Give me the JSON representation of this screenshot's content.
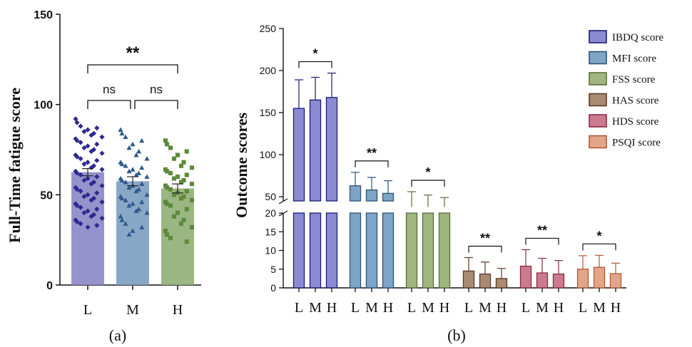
{
  "chart_data": [
    {
      "type": "bar",
      "panel_label": "(a)",
      "ylabel": "Full-Time fatigue score",
      "ylim": [
        0,
        150
      ],
      "yticks": [
        "0",
        "50",
        "100",
        "150"
      ],
      "categories": [
        "L",
        "M",
        "H"
      ],
      "values": [
        62.5,
        57.5,
        53.5
      ],
      "errors": [
        2,
        2.5,
        2.5
      ],
      "colors": [
        "#8b87c6",
        "#7c9ec0",
        "#8fae76"
      ],
      "point_colors": [
        "#2d2a8f",
        "#2f5a8c",
        "#5d8a3a"
      ],
      "point_markers": [
        "diamond",
        "triangle",
        "square"
      ],
      "points": [
        [
          92,
          90,
          88,
          87,
          86,
          85,
          84,
          83,
          82,
          81,
          80,
          79,
          78,
          77,
          76,
          75,
          74,
          73,
          72,
          71,
          70,
          69,
          68,
          67,
          66,
          65,
          64,
          63,
          62,
          61,
          60,
          59,
          58,
          57,
          56,
          55,
          54,
          53,
          52,
          51,
          50,
          49,
          48,
          47,
          46,
          45,
          44,
          43,
          42,
          41,
          40,
          39,
          38,
          37,
          36,
          35,
          34,
          33,
          32
        ],
        [
          86,
          84,
          82,
          80,
          78,
          76,
          74,
          72,
          70,
          68,
          67,
          66,
          65,
          64,
          63,
          62,
          61,
          60,
          59,
          58,
          57,
          56,
          55,
          54,
          53,
          52,
          50,
          49,
          48,
          47,
          46,
          45,
          44,
          42,
          41,
          40,
          38,
          36,
          34,
          32,
          30,
          28
        ],
        [
          80,
          78,
          76,
          74,
          72,
          70,
          68,
          66,
          65,
          64,
          63,
          62,
          61,
          60,
          59,
          58,
          57,
          56,
          55,
          54,
          53,
          52,
          51,
          50,
          49,
          48,
          47,
          46,
          45,
          44,
          42,
          40,
          38,
          36,
          34,
          32,
          30,
          28,
          26,
          24
        ]
      ],
      "annotations": [
        {
          "from": 0,
          "to": 1,
          "label": "ns"
        },
        {
          "from": 1,
          "to": 2,
          "label": "ns"
        },
        {
          "from": 0,
          "to": 2,
          "label": "**"
        }
      ]
    },
    {
      "type": "bar",
      "panel_label": "(b)",
      "ylabel": "Outcome scores",
      "axis_break": [
        20,
        45
      ],
      "yticks_upper": [
        "50",
        "100",
        "150",
        "200",
        "250"
      ],
      "yticks_lower": [
        "0",
        "5",
        "10",
        "15",
        "20"
      ],
      "categories": [
        "L",
        "M",
        "H"
      ],
      "series": [
        {
          "name": "IBDQ score",
          "color": "#8b8bd2",
          "edge": "#1c1c78",
          "values": [
            155,
            165,
            168
          ],
          "errors": [
            34,
            27,
            29
          ],
          "sig": "*"
        },
        {
          "name": "MFI score",
          "color": "#7ea5c6",
          "edge": "#2d5275",
          "values": [
            63,
            58,
            54
          ],
          "errors": [
            16,
            15,
            15
          ],
          "sig": "**"
        },
        {
          "name": "FSS score",
          "color": "#9fb67e",
          "edge": "#5b6d3e",
          "values": [
            44,
            41,
            38
          ],
          "errors": [
            12,
            11,
            11
          ],
          "sig": "*"
        },
        {
          "name": "HAS score",
          "color": "#a98a72",
          "edge": "#5a3a28",
          "values": [
            4.5,
            3.7,
            2.5
          ],
          "errors": [
            3.6,
            3.2,
            2.7
          ],
          "sig": "**"
        },
        {
          "name": "HDS score",
          "color": "#cc7a8d",
          "edge": "#8a2d44",
          "values": [
            5.8,
            4.0,
            3.7
          ],
          "errors": [
            4.4,
            3.9,
            3.6
          ],
          "sig": "**"
        },
        {
          "name": "PSQI score",
          "color": "#e2a58a",
          "edge": "#b05a36",
          "values": [
            5.0,
            5.5,
            3.8
          ],
          "errors": [
            3.6,
            3.2,
            2.8
          ],
          "sig": "*"
        }
      ],
      "legend_position": "top-right"
    }
  ]
}
